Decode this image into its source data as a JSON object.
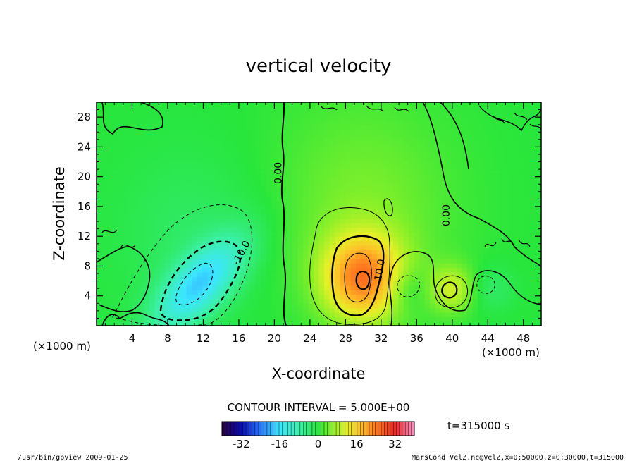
{
  "chart_data": {
    "type": "heatmap",
    "title": "vertical velocity",
    "xlabel": "X-coordinate",
    "ylabel": "Z-coordinate",
    "x_unit": "(×1000 m)",
    "y_unit": "(×1000 m)",
    "xlim": [
      0,
      50
    ],
    "ylim": [
      0,
      30
    ],
    "x_ticks": [
      "4",
      "8",
      "12",
      "16",
      "20",
      "24",
      "28",
      "32",
      "36",
      "40",
      "44",
      "48"
    ],
    "y_ticks": [
      "4",
      "8",
      "12",
      "16",
      "20",
      "24",
      "28"
    ],
    "contour_interval": "CONTOUR INTERVAL = 5.000E+00",
    "contour_labels": [
      "0.00",
      "0.00",
      "10.0",
      "-10.0"
    ],
    "colorbar": {
      "min": -40,
      "max": 40,
      "ticks": [
        "-32",
        "-16",
        "0",
        "16",
        "32"
      ]
    },
    "time_label": "t=315000 s",
    "features": [
      {
        "name": "updraft",
        "x": 30,
        "z": 6.5,
        "peak": 22
      },
      {
        "name": "downdraft",
        "x": 11.5,
        "z": 5.5,
        "peak": -16
      },
      {
        "name": "secondary updraft",
        "x": 40,
        "z": 5,
        "peak": 10
      },
      {
        "name": "weak downdraft",
        "x": 35,
        "z": 5,
        "peak": -5
      },
      {
        "name": "weak downdraft east",
        "x": 44,
        "z": 5,
        "peak": -4
      }
    ]
  },
  "footer": {
    "left": "/usr/bin/gpview   2009-01-25",
    "right": "MarsCond_VelZ.nc@VelZ,x=0:50000,z=0:30000,t=315000"
  },
  "colors": {
    "frame": "#000000",
    "contour": "#000000",
    "background": "#ffffff"
  }
}
